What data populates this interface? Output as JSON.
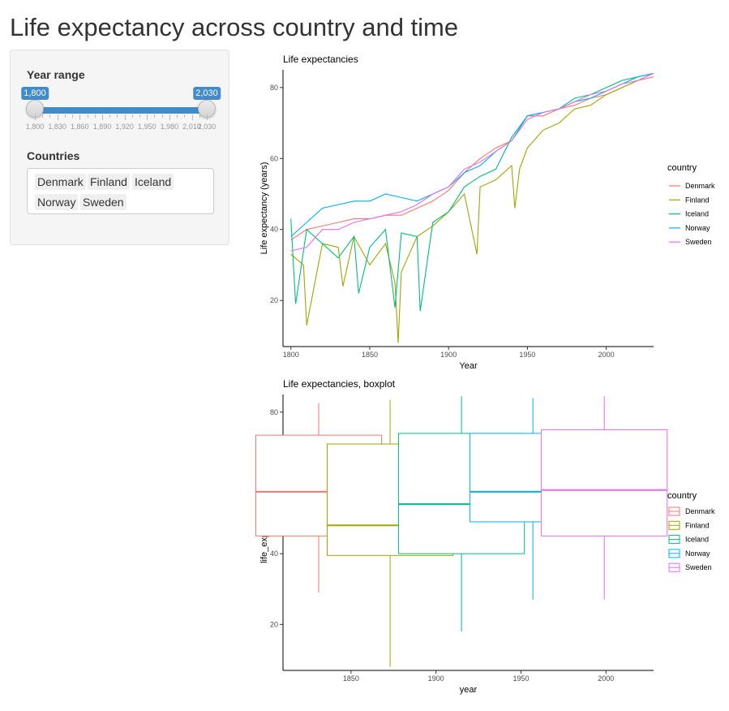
{
  "page": {
    "title": "Life expectancy across country and time"
  },
  "sidebar": {
    "year_range": {
      "label": "Year range",
      "min": 1800,
      "max": 2030,
      "value_low": 1800,
      "value_high": 2030,
      "low_label": "1,800",
      "high_label": "2,030",
      "ticks": [
        "1,800",
        "1,830",
        "1,860",
        "1,890",
        "1,920",
        "1,950",
        "1,980",
        "2,010",
        "2,030"
      ]
    },
    "countries": {
      "label": "Countries",
      "selected": [
        "Denmark",
        "Finland",
        "Iceland",
        "Norway",
        "Sweden"
      ]
    }
  },
  "chart_data": [
    {
      "type": "line",
      "title": "Life expectancies",
      "xlabel": "Year",
      "ylabel": "Life expectancy (years)",
      "xlim": [
        1795,
        2030
      ],
      "ylim": [
        7,
        85
      ],
      "xticks": [
        1800,
        1850,
        1900,
        1950,
        2000
      ],
      "yticks": [
        20,
        40,
        60,
        80
      ],
      "legend_title": "country",
      "legend_position": "right",
      "grid": false,
      "series": [
        {
          "name": "Denmark",
          "color": "#F8766D",
          "x": [
            1800,
            1810,
            1820,
            1830,
            1840,
            1850,
            1860,
            1870,
            1880,
            1890,
            1900,
            1910,
            1920,
            1930,
            1940,
            1950,
            1960,
            1970,
            1980,
            1990,
            2000,
            2010,
            2020,
            2030
          ],
          "y": [
            37,
            40,
            41,
            42,
            43,
            43,
            44,
            44,
            46,
            48,
            51,
            56,
            60,
            63,
            65,
            72,
            72,
            74,
            75,
            77,
            78,
            80,
            82,
            83
          ]
        },
        {
          "name": "Finland",
          "color": "#A3A500",
          "x": [
            1800,
            1808,
            1810,
            1820,
            1830,
            1833,
            1840,
            1850,
            1860,
            1866,
            1868,
            1870,
            1880,
            1890,
            1900,
            1910,
            1918,
            1920,
            1930,
            1940,
            1942,
            1945,
            1950,
            1960,
            1970,
            1980,
            1990,
            2000,
            2010,
            2020,
            2030
          ],
          "y": [
            33,
            30,
            13,
            36,
            35,
            24,
            38,
            30,
            36,
            25,
            8,
            28,
            38,
            41,
            45,
            50,
            33,
            52,
            54,
            58,
            46,
            57,
            63,
            68,
            70,
            74,
            75,
            78,
            80,
            82,
            84
          ]
        },
        {
          "name": "Iceland",
          "color": "#00BF7D",
          "x": [
            1800,
            1803,
            1810,
            1820,
            1830,
            1840,
            1843,
            1850,
            1860,
            1866,
            1870,
            1880,
            1882,
            1890,
            1900,
            1910,
            1920,
            1930,
            1940,
            1950,
            1960,
            1970,
            1980,
            1990,
            2000,
            2010,
            2020,
            2030
          ],
          "y": [
            43,
            19,
            40,
            36,
            32,
            38,
            22,
            35,
            40,
            18,
            39,
            38,
            17,
            42,
            45,
            52,
            55,
            57,
            66,
            72,
            73,
            74,
            77,
            78,
            80,
            82,
            83,
            84
          ]
        },
        {
          "name": "Norway",
          "color": "#00B0F6",
          "x": [
            1800,
            1810,
            1820,
            1830,
            1840,
            1850,
            1860,
            1870,
            1880,
            1890,
            1900,
            1910,
            1920,
            1930,
            1940,
            1950,
            1960,
            1970,
            1980,
            1990,
            2000,
            2010,
            2020,
            2030
          ],
          "y": [
            38,
            42,
            46,
            47,
            48,
            48,
            50,
            49,
            48,
            50,
            52,
            56,
            58,
            62,
            65,
            72,
            73,
            74,
            76,
            77,
            79,
            81,
            83,
            84
          ]
        },
        {
          "name": "Sweden",
          "color": "#E76BF3",
          "x": [
            1800,
            1810,
            1820,
            1830,
            1840,
            1850,
            1860,
            1870,
            1880,
            1890,
            1900,
            1910,
            1920,
            1930,
            1940,
            1950,
            1960,
            1970,
            1980,
            1990,
            2000,
            2010,
            2020,
            2030
          ],
          "y": [
            34,
            35,
            40,
            40,
            42,
            43,
            44,
            45,
            47,
            50,
            52,
            57,
            59,
            62,
            65,
            71,
            73,
            74,
            76,
            78,
            79,
            81,
            82,
            84
          ]
        }
      ]
    },
    {
      "type": "box",
      "title": "Life expectancies, boxplot",
      "xlabel": "year",
      "ylabel": "life_expectancy",
      "xlim": [
        1810,
        2028
      ],
      "ylim": [
        7,
        85
      ],
      "xticks": [
        1850,
        1900,
        1950,
        2000
      ],
      "yticks": [
        20,
        40,
        60,
        80
      ],
      "legend_title": "country",
      "legend_position": "right",
      "grid": false,
      "boxes": [
        {
          "name": "Denmark",
          "color": "#F8766D",
          "x_center": 1831,
          "x_width": 37,
          "min": 29,
          "q1": 45,
          "median": 57.5,
          "q3": 73.5,
          "max": 82.5
        },
        {
          "name": "Finland",
          "color": "#A3A500",
          "x_center": 1873,
          "x_width": 37,
          "min": 8,
          "q1": 39.5,
          "median": 48,
          "q3": 71,
          "max": 83.5
        },
        {
          "name": "Iceland",
          "color": "#00BF7D",
          "x_center": 1915,
          "x_width": 37,
          "min": 18,
          "q1": 40,
          "median": 54,
          "q3": 74,
          "max": 84.5
        },
        {
          "name": "Norway",
          "color": "#00B0F6",
          "x_center": 1957,
          "x_width": 37,
          "min": 27,
          "q1": 49,
          "median": 57.5,
          "q3": 74,
          "max": 84
        },
        {
          "name": "Sweden",
          "color": "#E76BF3",
          "x_center": 1999,
          "x_width": 37,
          "min": 27,
          "q1": 45,
          "median": 58,
          "q3": 75,
          "max": 84.5
        }
      ]
    }
  ]
}
